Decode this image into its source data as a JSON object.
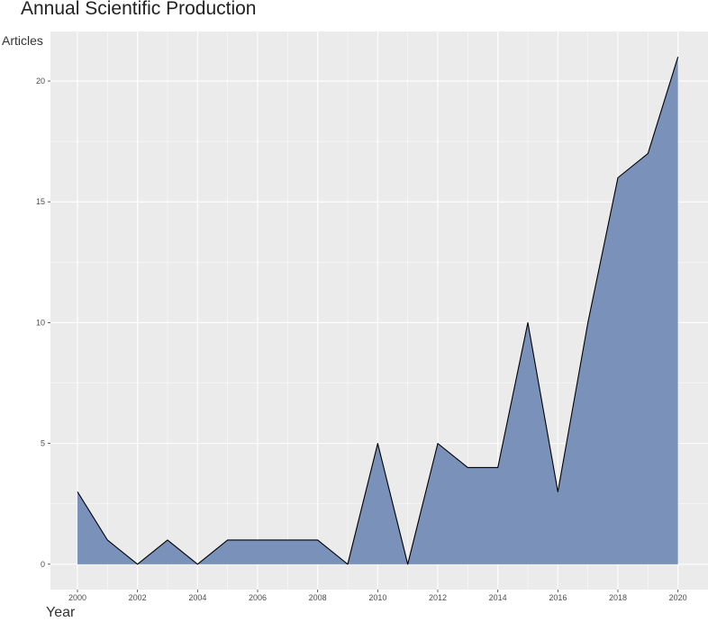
{
  "chart_data": {
    "type": "area",
    "title": "Annual Scientific Production",
    "xlabel": "Year",
    "ylabel": "Articles",
    "x": [
      2000,
      2001,
      2002,
      2003,
      2004,
      2005,
      2006,
      2007,
      2008,
      2009,
      2010,
      2011,
      2012,
      2013,
      2014,
      2015,
      2016,
      2017,
      2018,
      2019,
      2020
    ],
    "values": [
      3,
      1,
      0,
      1,
      0,
      1,
      1,
      1,
      1,
      0,
      5,
      0,
      5,
      4,
      4,
      10,
      3,
      10,
      16,
      17,
      21
    ],
    "xticks": [
      "2000",
      "2002",
      "2004",
      "2006",
      "2008",
      "2010",
      "2012",
      "2014",
      "2016",
      "2018",
      "2020"
    ],
    "yticks": [
      "0",
      "5",
      "10",
      "15",
      "20"
    ],
    "xlim": [
      1999.1,
      2021.0
    ],
    "ylim": [
      -1.05,
      22.05
    ],
    "grid": true,
    "fill_color": "#7a91b9",
    "line_color": "#000000",
    "panel_color": "#ebebeb",
    "grid_color": "#ffffff"
  }
}
